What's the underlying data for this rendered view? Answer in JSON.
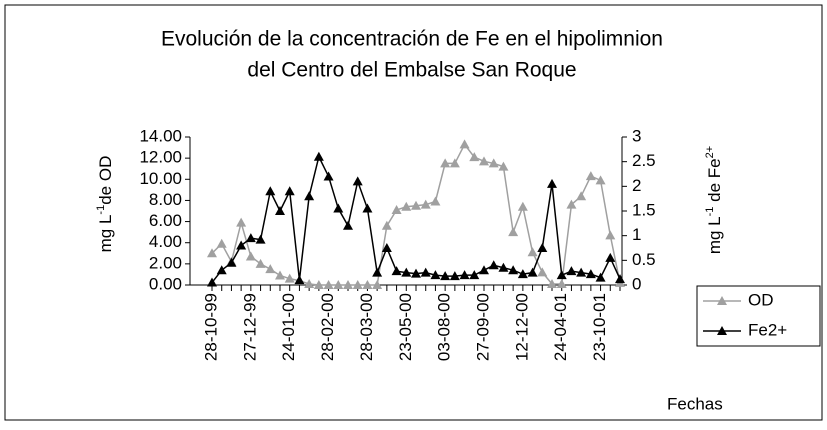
{
  "chart_data": {
    "type": "line",
    "title": [
      "Evolución de la concentración de Fe en el hipolimnion",
      "del Centro del Embalse San Roque"
    ],
    "x_label": "Fechas",
    "y_label": [
      {
        "text": "mg L"
      },
      {
        "text": "-1",
        "sup": true
      },
      {
        "text": "de OD"
      }
    ],
    "y2_label": [
      {
        "text": "mg L"
      },
      {
        "text": "-1",
        "sup": true
      },
      {
        "text": " de Fe"
      },
      {
        "text": "2+",
        "sup": true
      }
    ],
    "categories": [
      "28-10-99",
      null,
      null,
      null,
      "27-12-99",
      null,
      null,
      null,
      "24-01-00",
      null,
      null,
      null,
      "28-02-00",
      null,
      null,
      null,
      "28-03-00",
      null,
      null,
      null,
      "23-05-00",
      null,
      null,
      null,
      "03-08-00",
      null,
      null,
      null,
      "27-09-00",
      null,
      null,
      null,
      "12-12-00",
      null,
      null,
      null,
      "24-04-01",
      null,
      null,
      null,
      "23-10-01",
      null,
      null
    ],
    "ylim": [
      0,
      14
    ],
    "yticks": [
      {
        "value": 0,
        "label": "0.00"
      },
      {
        "value": 2,
        "label": "2.00"
      },
      {
        "value": 4,
        "label": "4.00"
      },
      {
        "value": 6,
        "label": "6.00"
      },
      {
        "value": 8,
        "label": "8.00"
      },
      {
        "value": 10,
        "label": "10.00"
      },
      {
        "value": 12,
        "label": "12.00"
      },
      {
        "value": 14,
        "label": "14.00"
      }
    ],
    "y2lim": [
      0,
      3
    ],
    "y2ticks": [
      0,
      0.5,
      1,
      1.5,
      2,
      2.5,
      3
    ],
    "legend": "right",
    "series": [
      {
        "name": "OD",
        "color": "#a0a0a0",
        "values": [
          3.0,
          3.9,
          2.2,
          5.9,
          2.7,
          2.0,
          1.5,
          0.9,
          0.6,
          0.4,
          0.1,
          0,
          0,
          0,
          0,
          0,
          0,
          0,
          5.6,
          7.1,
          7.4,
          7.5,
          7.6,
          7.9,
          11.5,
          11.5,
          13.3,
          12.1,
          11.7,
          11.5,
          11.2,
          5.0,
          7.4,
          3.1,
          1.2,
          0.1,
          0.1,
          7.6,
          8.4,
          10.3,
          9.9,
          4.7,
          0.2
        ]
      },
      {
        "name": "Fe2+",
        "color": "#000000",
        "axis": "y2",
        "values": [
          0.05,
          0.3,
          0.45,
          0.8,
          0.95,
          0.92,
          1.9,
          1.5,
          1.9,
          0.1,
          1.8,
          2.6,
          2.2,
          1.55,
          1.2,
          2.1,
          1.55,
          0.25,
          0.75,
          0.28,
          0.25,
          0.23,
          0.25,
          0.2,
          0.18,
          0.18,
          0.2,
          0.2,
          0.3,
          0.4,
          0.35,
          0.3,
          0.22,
          0.25,
          0.75,
          2.05,
          0.2,
          0.28,
          0.25,
          0.22,
          0.15,
          0.55,
          0.12
        ]
      }
    ]
  }
}
